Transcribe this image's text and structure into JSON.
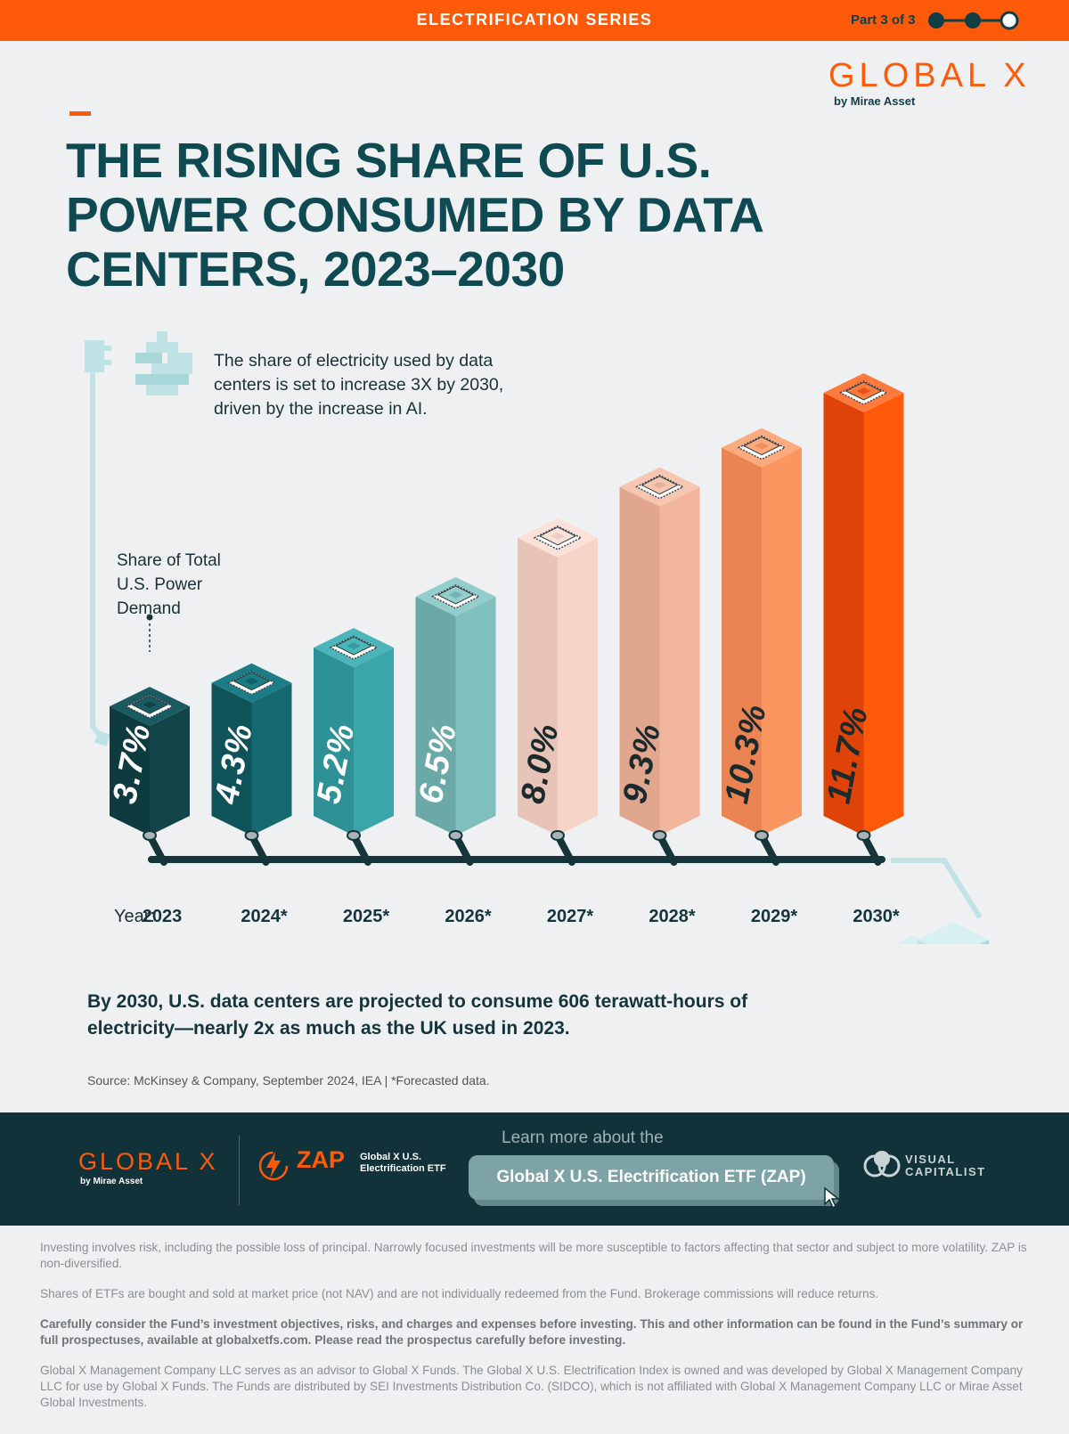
{
  "header": {
    "series": "ELECTRIFICATION SERIES",
    "part": "Part 3 of 3"
  },
  "brand": {
    "name": "GLOBAL X",
    "sub": "by Mirae Asset"
  },
  "title": "THE RISING SHARE OF U.S. POWER CONSUMED BY DATA CENTERS, 2023–2030",
  "note": "The share of electricity used by data centers is set to increase 3X by 2030, driven by the increase in AI.",
  "chart_data": {
    "type": "bar",
    "title": "THE RISING SHARE OF U.S. POWER CONSUMED BY DATA CENTERS, 2023–2030",
    "measure_label": "Share of Total U.S. Power Demand",
    "x_prefix": "Year:",
    "categories": [
      "2023",
      "2024*",
      "2025*",
      "2026*",
      "2027*",
      "2028*",
      "2029*",
      "2030*"
    ],
    "values": [
      3.7,
      4.3,
      5.2,
      6.5,
      8.0,
      9.3,
      10.3,
      11.7
    ],
    "labels": [
      "3.7%",
      "4.3%",
      "5.2%",
      "6.5%",
      "8.0%",
      "9.3%",
      "10.3%",
      "11.7%"
    ],
    "colors": [
      {
        "left": "#0d3b40",
        "right": "#12444a",
        "top": "#1a5a61",
        "text": "#ffffff"
      },
      {
        "left": "#0f535a",
        "right": "#156a72",
        "top": "#1d7d86",
        "text": "#ffffff"
      },
      {
        "left": "#2e9196",
        "right": "#3aa6ab",
        "top": "#4bb5ba",
        "text": "#ffffff"
      },
      {
        "left": "#6aa9a8",
        "right": "#7fbfbd",
        "top": "#93cecc",
        "text": "#ffffff"
      },
      {
        "left": "#e8c3b7",
        "right": "#f7d4c8",
        "top": "#fbe2d8",
        "text": "#1b2a2d"
      },
      {
        "left": "#e0a68e",
        "right": "#f2b69d",
        "top": "#f6c6b1",
        "text": "#1b2a2d"
      },
      {
        "left": "#ea8452",
        "right": "#fc9660",
        "top": "#fdaa7e",
        "text": "#1b2a2d"
      },
      {
        "left": "#df4307",
        "right": "#ff5a0a",
        "top": "#ff7a3c",
        "text": "#1b2a2d"
      }
    ]
  },
  "conclusion": "By 2030, U.S. data centers are projected to consume 606 terawatt-hours of electricity—nearly 2x as much as the UK used in 2023.",
  "source": "Source: McKinsey & Company, September 2024, IEA | *Forecasted data.",
  "footer": {
    "brand": "GLOBAL X",
    "brand_sub": "by Mirae Asset",
    "zap": "ZAP",
    "zap_desc": "Global X U.S. Electrification ETF",
    "learn_more": "Learn more about the",
    "button": "Global X U.S. Electrification ETF (ZAP)",
    "vc_line1": "VISUAL",
    "vc_line2": "CAPITALIST"
  },
  "disclaimers": [
    "Investing involves risk, including the possible loss of principal. Narrowly focused investments will be more susceptible to factors affecting that sector and subject to more volatility. ZAP is non-diversified.",
    "Shares of ETFs are bought and sold at market price (not NAV) and are not individually redeemed from the Fund. Brokerage commissions will reduce returns.",
    "Carefully consider the Fund’s investment objectives, risks, and charges and expenses before investing. This and other information can be found in the Fund’s summary or full prospectuses, available at globalxetfs.com. Please read the prospectus carefully before investing.",
    "Global X Management Company LLC serves as an advisor to Global X Funds. The Global X U.S. Electrification Index is owned and was developed by Global X Management Company LLC for use by Global X Funds. The Funds are distributed by SEI Investments Distribution Co. (SIDCO), which is not affiliated with Global X Management Company LLC or Mirae Asset Global Investments."
  ]
}
